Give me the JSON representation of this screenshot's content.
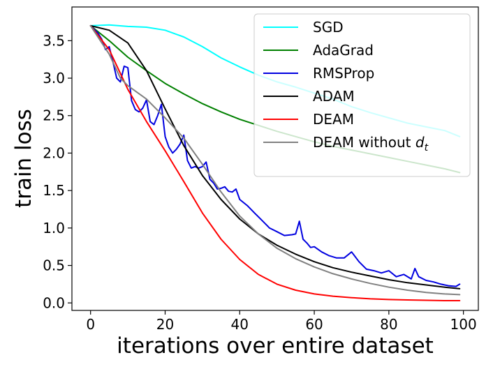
{
  "chart_data": {
    "type": "line",
    "title": "",
    "xlabel": "iterations over entire dataset",
    "ylabel": "train loss",
    "xlim": [
      -5,
      104
    ],
    "ylim": [
      -0.1,
      3.95
    ],
    "xticks": [
      0,
      20,
      40,
      60,
      80,
      100
    ],
    "yticks": [
      0.0,
      0.5,
      1.0,
      1.5,
      2.0,
      2.5,
      3.0,
      3.5
    ],
    "ytick_labels": [
      "0.0",
      "0.5",
      "1.0",
      "1.5",
      "2.0",
      "2.5",
      "3.0",
      "3.5"
    ],
    "legend_position": "top-right",
    "series": [
      {
        "name": "SGD",
        "color": "#00ffff",
        "x": [
          0,
          5,
          10,
          15,
          20,
          25,
          30,
          35,
          40,
          45,
          50,
          55,
          60,
          65,
          70,
          75,
          80,
          85,
          90,
          95,
          99
        ],
        "y": [
          3.7,
          3.71,
          3.69,
          3.68,
          3.64,
          3.55,
          3.42,
          3.27,
          3.15,
          3.04,
          2.95,
          2.88,
          2.8,
          2.72,
          2.62,
          2.54,
          2.47,
          2.4,
          2.35,
          2.3,
          2.22
        ]
      },
      {
        "name": "AdaGrad",
        "color": "#008000",
        "x": [
          0,
          5,
          10,
          15,
          20,
          25,
          30,
          35,
          40,
          45,
          50,
          55,
          60,
          65,
          70,
          75,
          80,
          85,
          90,
          95,
          99
        ],
        "y": [
          3.7,
          3.5,
          3.28,
          3.1,
          2.93,
          2.79,
          2.66,
          2.55,
          2.45,
          2.37,
          2.29,
          2.22,
          2.15,
          2.09,
          2.04,
          1.99,
          1.94,
          1.89,
          1.84,
          1.79,
          1.74
        ]
      },
      {
        "name": "RMSProp",
        "color": "#0000e0",
        "x": [
          0,
          2,
          3,
          4,
          5,
          6,
          7,
          8,
          9,
          10,
          11,
          12,
          13,
          14,
          15,
          16,
          17,
          18,
          19,
          20,
          21,
          22,
          23,
          24,
          25,
          26,
          27,
          28,
          29,
          30,
          31,
          32,
          33,
          34,
          35,
          36,
          37,
          38,
          39,
          40,
          42,
          44,
          46,
          48,
          50,
          52,
          54,
          55,
          56,
          57,
          58,
          59,
          60,
          62,
          64,
          66,
          68,
          70,
          72,
          74,
          76,
          78,
          80,
          82,
          84,
          86,
          87,
          88,
          90,
          92,
          94,
          96,
          98,
          99
        ],
        "y": [
          3.7,
          3.6,
          3.52,
          3.38,
          3.42,
          3.22,
          3.0,
          2.95,
          3.16,
          3.14,
          2.7,
          2.58,
          2.55,
          2.6,
          2.71,
          2.42,
          2.38,
          2.5,
          2.65,
          2.22,
          2.08,
          2.0,
          2.05,
          2.12,
          2.24,
          1.9,
          1.8,
          1.82,
          1.8,
          1.82,
          1.88,
          1.65,
          1.6,
          1.52,
          1.53,
          1.55,
          1.49,
          1.48,
          1.52,
          1.38,
          1.3,
          1.2,
          1.1,
          1.0,
          0.95,
          0.9,
          0.91,
          0.92,
          1.09,
          0.85,
          0.8,
          0.74,
          0.75,
          0.68,
          0.63,
          0.6,
          0.6,
          0.68,
          0.55,
          0.45,
          0.43,
          0.4,
          0.43,
          0.35,
          0.38,
          0.32,
          0.46,
          0.35,
          0.3,
          0.28,
          0.25,
          0.23,
          0.22,
          0.25
        ]
      },
      {
        "name": "ADAM",
        "color": "#000000",
        "x": [
          0,
          5,
          10,
          15,
          20,
          25,
          30,
          35,
          40,
          45,
          50,
          55,
          60,
          65,
          70,
          75,
          80,
          85,
          90,
          95,
          99
        ],
        "y": [
          3.7,
          3.64,
          3.47,
          3.1,
          2.59,
          2.1,
          1.7,
          1.38,
          1.12,
          0.92,
          0.77,
          0.65,
          0.55,
          0.47,
          0.41,
          0.36,
          0.31,
          0.27,
          0.24,
          0.21,
          0.19
        ]
      },
      {
        "name": "DEAM",
        "color": "#ff0000",
        "x": [
          0,
          5,
          10,
          15,
          20,
          25,
          30,
          35,
          40,
          45,
          50,
          55,
          60,
          65,
          70,
          75,
          80,
          85,
          90,
          95,
          99
        ],
        "y": [
          3.7,
          3.38,
          2.85,
          2.42,
          2.03,
          1.62,
          1.2,
          0.85,
          0.58,
          0.38,
          0.25,
          0.17,
          0.12,
          0.09,
          0.07,
          0.055,
          0.045,
          0.04,
          0.035,
          0.03,
          0.03
        ]
      },
      {
        "name": "DEAM without d_t",
        "color": "#808080",
        "x": [
          0,
          5,
          8,
          10,
          15,
          20,
          25,
          30,
          35,
          40,
          45,
          50,
          55,
          60,
          65,
          70,
          75,
          80,
          85,
          90,
          95,
          99
        ],
        "y": [
          3.7,
          3.32,
          3.0,
          2.9,
          2.72,
          2.47,
          2.2,
          1.85,
          1.48,
          1.16,
          0.92,
          0.73,
          0.59,
          0.48,
          0.39,
          0.32,
          0.26,
          0.21,
          0.17,
          0.14,
          0.12,
          0.11
        ]
      }
    ],
    "legend": [
      {
        "label": "SGD",
        "color": "#00ffff"
      },
      {
        "label": "AdaGrad",
        "color": "#008000"
      },
      {
        "label": "RMSProp",
        "color": "#0000e0"
      },
      {
        "label": "ADAM",
        "color": "#000000"
      },
      {
        "label": "DEAM",
        "color": "#ff0000"
      },
      {
        "label": "DEAM without ",
        "sub_symbol": "d",
        "sub_index": "t",
        "color": "#808080"
      }
    ]
  }
}
